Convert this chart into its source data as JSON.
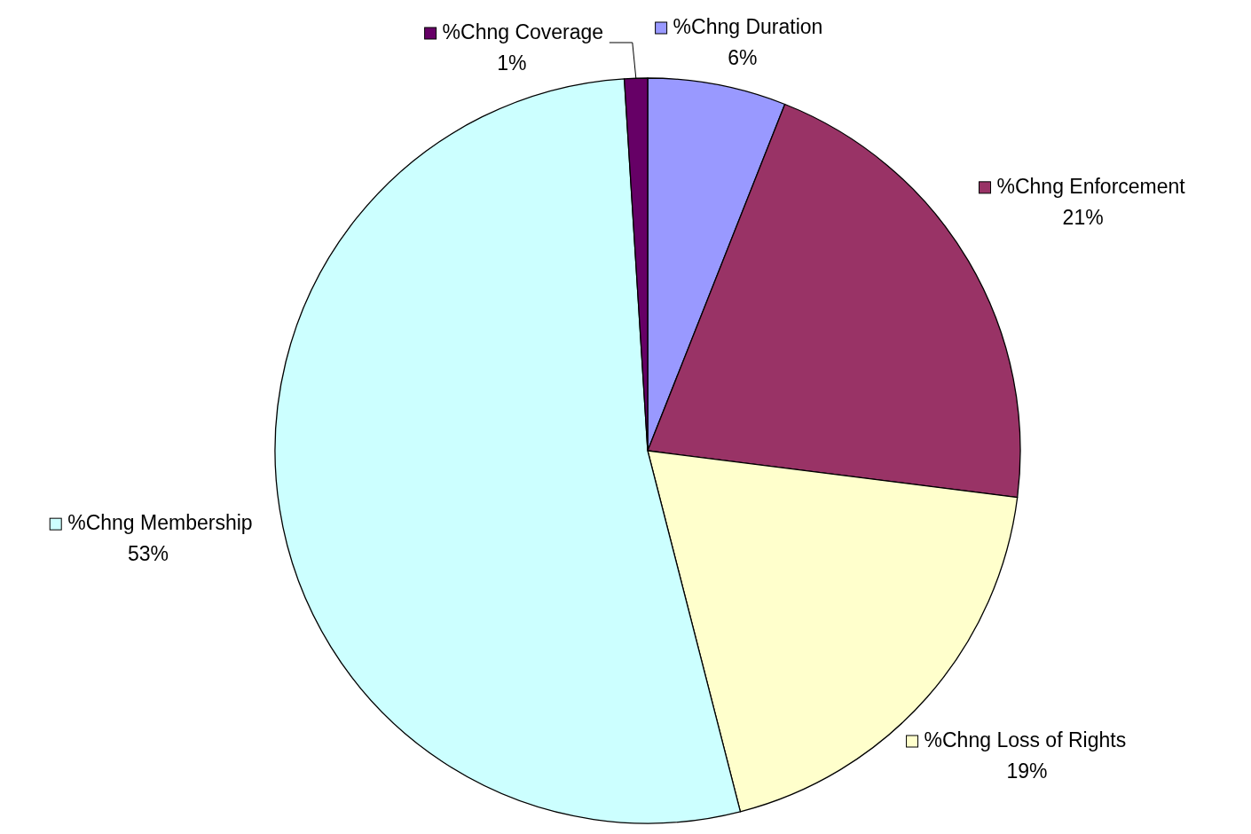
{
  "chart_data": {
    "type": "pie",
    "categories": [
      "%Chng Duration",
      "%Chng Enforcement",
      "%Chng Loss of Rights",
      "%Chng Membership",
      "%Chng Coverage"
    ],
    "values": [
      6,
      21,
      19,
      53,
      1
    ],
    "legend": "top right",
    "value_labels": [
      "6%",
      "21%",
      "19%",
      "53%",
      "1%"
    ],
    "colors": [
      "#9999ff",
      "#993366",
      "#ffffcc",
      "#ccffff",
      "#660066"
    ]
  }
}
